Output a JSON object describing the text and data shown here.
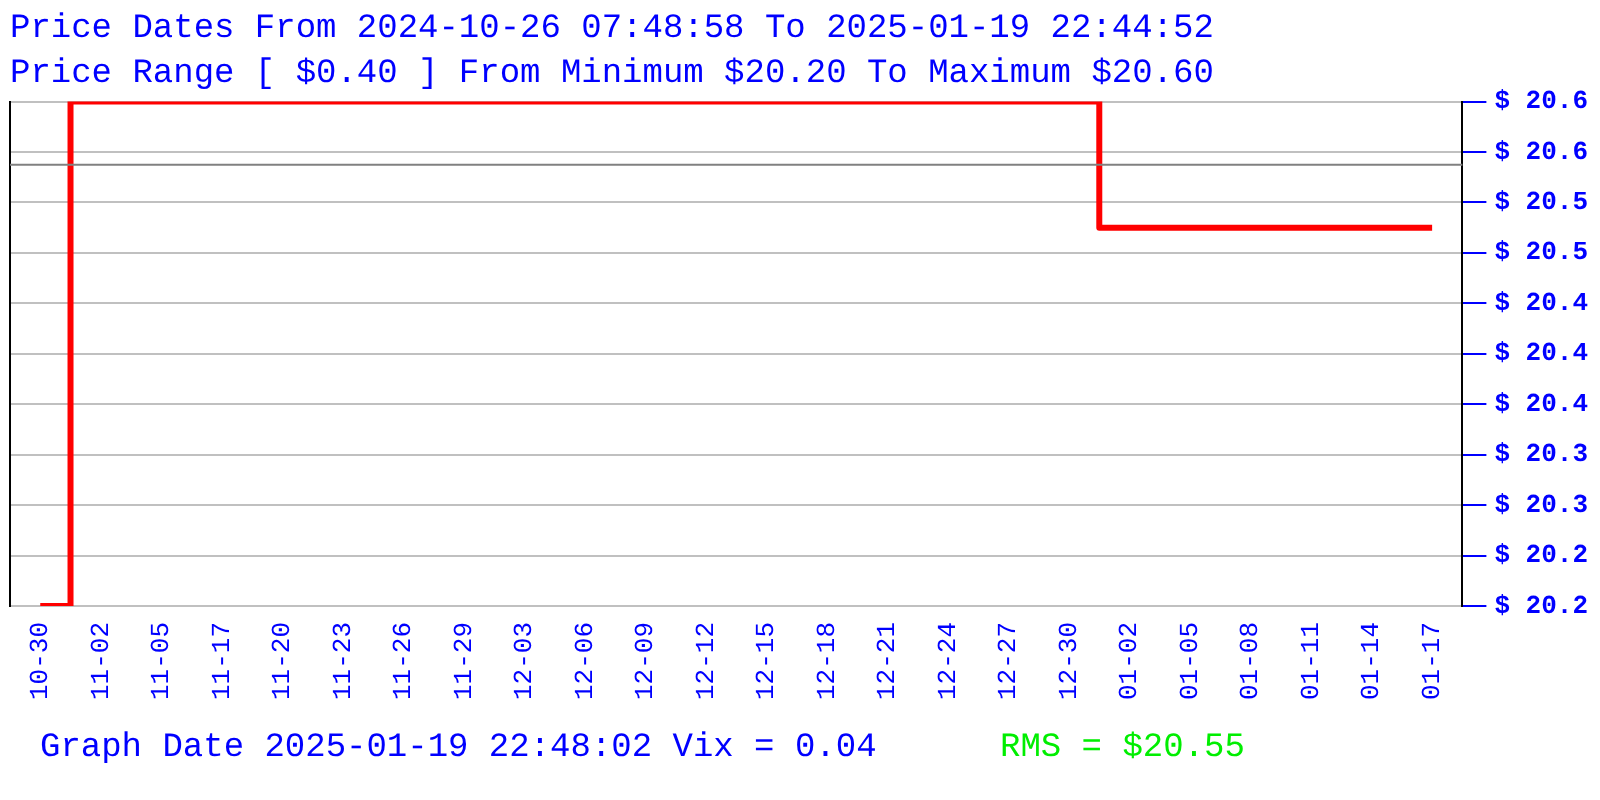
{
  "chart_data": {
    "type": "step",
    "title": "Price Dates From 2024-10-26 07:48:58 To 2025-01-19 22:44:52",
    "subtitle": "Price Range [ $0.40 ] From Minimum $20.20 To Maximum $20.60",
    "categories": [
      "10-30",
      "11-02",
      "11-05",
      "11-17",
      "11-20",
      "11-23",
      "11-26",
      "11-29",
      "12-03",
      "12-06",
      "12-09",
      "12-12",
      "12-15",
      "12-18",
      "12-21",
      "12-24",
      "12-27",
      "12-30",
      "01-02",
      "01-05",
      "01-08",
      "01-11",
      "01-14",
      "01-17"
    ],
    "series": [
      {
        "color": "#ff0000",
        "values": [
          20.2,
          20.6,
          20.6,
          20.6,
          20.6,
          20.6,
          20.6,
          20.6,
          20.6,
          20.6,
          20.6,
          20.6,
          20.6,
          20.6,
          20.6,
          20.6,
          20.6,
          20.6,
          20.5,
          20.5,
          20.5,
          20.5,
          20.5,
          20.5
        ]
      }
    ],
    "ylim": [
      20.2,
      20.6
    ],
    "yticks": [
      {
        "value": 20.2,
        "label": "$ 20.2"
      },
      {
        "value": 20.24,
        "label": "$ 20.2"
      },
      {
        "value": 20.28,
        "label": "$ 20.3"
      },
      {
        "value": 20.32,
        "label": "$ 20.3"
      },
      {
        "value": 20.36,
        "label": "$ 20.4"
      },
      {
        "value": 20.4,
        "label": "$ 20.4"
      },
      {
        "value": 20.44,
        "label": "$ 20.4"
      },
      {
        "value": 20.48,
        "label": "$ 20.5"
      },
      {
        "value": 20.52,
        "label": "$ 20.5"
      },
      {
        "value": 20.56,
        "label": "$ 20.6"
      },
      {
        "value": 20.6,
        "label": "$ 20.6"
      }
    ],
    "ref_lines": [
      {
        "axis": "y",
        "value": 20.55,
        "color": "#808080"
      }
    ],
    "grid": "y",
    "legend": false,
    "marker": "none",
    "line_style": "solid",
    "annotations": [
      "Graph Date 2025-01-19 22:48:02 Vix = 0.04",
      "RMS = $20.55"
    ]
  }
}
